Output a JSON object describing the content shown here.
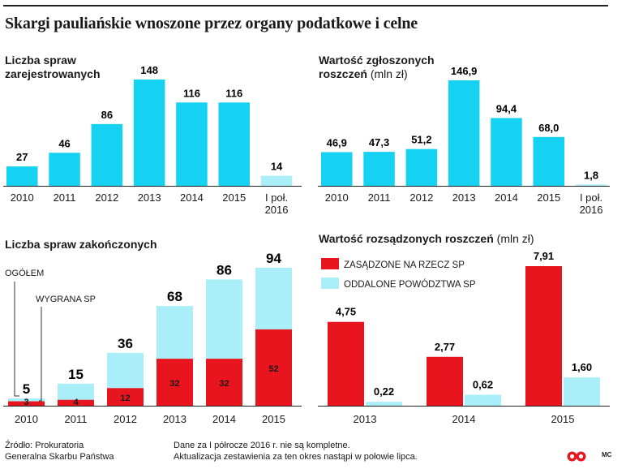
{
  "title": "Skargi pauliańskie wnoszone przez organy podatkowe i celne",
  "colors": {
    "cyan": "#15d2f2",
    "light_cyan": "#aaeef9",
    "red": "#e8141e",
    "axis": "#222222"
  },
  "chart_data": [
    {
      "id": "registered",
      "type": "bar",
      "title_lines": [
        "Liczba spraw",
        "zarejestrowanych"
      ],
      "unit": "",
      "categories": [
        "2010",
        "2011",
        "2012",
        "2013",
        "2014",
        "2015",
        "I poł.\n2016"
      ],
      "values": [
        27,
        46,
        86,
        148,
        116,
        116,
        14
      ],
      "value_labels": [
        "27",
        "46",
        "86",
        "148",
        "116",
        "116",
        "14"
      ],
      "partial_last": true
    },
    {
      "id": "claims_value",
      "type": "bar",
      "title_lines": [
        "Wartość zgłoszonych",
        "roszczeń"
      ],
      "unit": "(mln zł)",
      "categories": [
        "2010",
        "2011",
        "2012",
        "2013",
        "2014",
        "2015",
        "I poł.\n2016"
      ],
      "values": [
        46.9,
        47.3,
        51.2,
        146.9,
        94.4,
        68.0,
        1.8
      ],
      "value_labels": [
        "46,9",
        "47,3",
        "51,2",
        "146,9",
        "94,4",
        "68,0",
        "1,8"
      ],
      "partial_last": true
    },
    {
      "id": "closed",
      "type": "bar",
      "stacked": true,
      "title_lines": [
        "Liczba spraw zakończonych"
      ],
      "unit": "",
      "categories": [
        "2010",
        "2011",
        "2012",
        "2013",
        "2014",
        "2015"
      ],
      "annotations": [
        "OGÓŁEM",
        "WYGRANA SP"
      ],
      "series": [
        {
          "name": "WYGRANA SP",
          "values": [
            3,
            4,
            12,
            32,
            32,
            52
          ],
          "labels": [
            "3",
            "4",
            "12",
            "32",
            "32",
            "52"
          ]
        },
        {
          "name": "OGÓŁEM",
          "values": [
            5,
            15,
            36,
            68,
            86,
            94
          ],
          "labels": [
            "5",
            "15",
            "36",
            "68",
            "86",
            "94"
          ]
        }
      ]
    },
    {
      "id": "decided_value",
      "type": "bar",
      "title_lines": [
        "Wartość rozsądzonych roszczeń"
      ],
      "unit": "(mln zł)",
      "categories": [
        "2013",
        "2014",
        "2015"
      ],
      "legend": "top-left",
      "series": [
        {
          "name": "ZASĄDZONE NA RZECZ SP",
          "values": [
            4.75,
            2.77,
            7.91
          ],
          "labels": [
            "4,75",
            "2,77",
            "7,91"
          ]
        },
        {
          "name": "ODDALONE POWÓDZTWA SP",
          "values": [
            0.22,
            0.62,
            1.6
          ],
          "labels": [
            "0,22",
            "0,62",
            "1,60"
          ]
        }
      ]
    }
  ],
  "footer": {
    "source_lines": [
      "Źródło: Prokuratoria",
      "Generalna Skarbu Państwa"
    ],
    "note_lines": [
      "Dane za I półrocze 2016 r. nie są kompletne.",
      "Aktualizacja zestawienia za ten okres nastąpi w połowie lipca."
    ],
    "author": "MC"
  }
}
